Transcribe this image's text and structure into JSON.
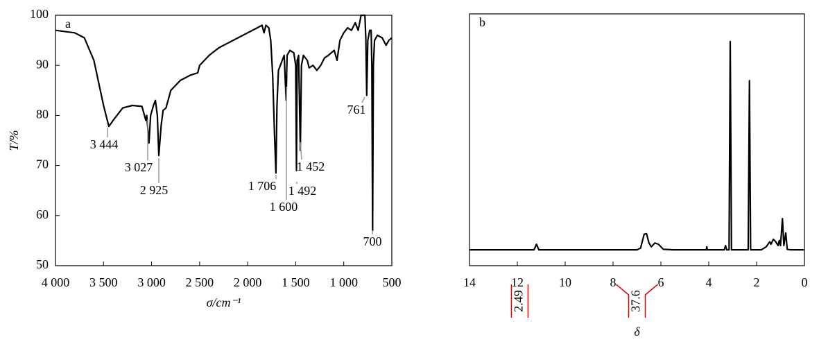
{
  "chart_data": [
    {
      "type": "line",
      "label": "a",
      "title_y": "T/%",
      "title_x": "σ/cm⁻¹",
      "xlim": [
        4000,
        500
      ],
      "ylim": [
        50,
        100
      ],
      "xticks": [
        {
          "value": 4000,
          "label": "4 000"
        },
        {
          "value": 3500,
          "label": "3 500"
        },
        {
          "value": 3000,
          "label": "3 000"
        },
        {
          "value": 2500,
          "label": "2 500"
        },
        {
          "value": 2000,
          "label": "2 000"
        },
        {
          "value": 1500,
          "label": "1 500"
        },
        {
          "value": 1000,
          "label": "1 000"
        },
        500
      ],
      "yticks": [
        50,
        60,
        70,
        80,
        90,
        100
      ],
      "color": "#000000",
      "x": [
        4000,
        3800,
        3700,
        3600,
        3500,
        3444,
        3400,
        3300,
        3200,
        3100,
        3060,
        3050,
        3027,
        3010,
        2980,
        2960,
        2940,
        2925,
        2900,
        2880,
        2850,
        2800,
        2700,
        2600,
        2520,
        2500,
        2400,
        2300,
        2200,
        2100,
        2000,
        1900,
        1850,
        1830,
        1810,
        1780,
        1760,
        1740,
        1720,
        1706,
        1695,
        1680,
        1660,
        1640,
        1620,
        1600,
        1590,
        1560,
        1520,
        1500,
        1492,
        1485,
        1470,
        1452,
        1440,
        1420,
        1380,
        1360,
        1320,
        1280,
        1240,
        1200,
        1160,
        1100,
        1070,
        1040,
        1000,
        960,
        920,
        880,
        850,
        820,
        780,
        770,
        761,
        750,
        730,
        715,
        708,
        700,
        692,
        680,
        650,
        600,
        560,
        530,
        500
      ],
      "values": [
        97,
        96.5,
        95.5,
        91,
        82,
        77.8,
        79,
        81.5,
        82,
        81.8,
        79,
        80,
        74.5,
        80,
        82,
        83,
        80,
        72,
        78,
        81,
        81.5,
        85,
        87,
        88,
        88.5,
        90,
        92,
        93.5,
        94.5,
        95.5,
        96.5,
        97.5,
        98,
        96.5,
        98,
        97.5,
        95,
        88,
        76,
        68.5,
        82,
        89,
        90,
        91,
        92,
        83,
        92,
        93,
        92.5,
        90,
        69,
        91,
        92,
        73,
        90,
        92,
        91,
        89.5,
        90,
        89,
        90,
        91.5,
        92,
        93,
        91,
        95,
        96.5,
        97.5,
        97,
        98.5,
        97,
        100,
        100,
        95,
        84,
        95,
        97,
        97,
        90,
        57,
        90,
        95,
        96,
        95.5,
        94,
        95,
        95.5
      ],
      "annotations": [
        "3 444",
        "3 027",
        "2 925",
        "1 706",
        "1 600",
        "1 492",
        "1 452",
        "761",
        "700"
      ]
    },
    {
      "type": "line",
      "label": "b",
      "title_x": "δ",
      "xlim": [
        14,
        0
      ],
      "ylim": [
        0,
        100
      ],
      "xticks": [
        14,
        12,
        10,
        8,
        6,
        4,
        2,
        0
      ],
      "color": "#000000",
      "x": [
        14,
        11.3,
        11.2,
        11.1,
        7.0,
        6.85,
        6.7,
        6.6,
        6.5,
        6.4,
        6.25,
        6.1,
        5.9,
        5.5,
        4.1,
        4.08,
        4.06,
        3.35,
        3.3,
        3.25,
        3.15,
        3.1,
        3.05,
        2.35,
        2.3,
        2.25,
        1.8,
        1.6,
        1.45,
        1.4,
        1.3,
        1.2,
        1.1,
        1.05,
        1.0,
        0.92,
        0.86,
        0.78,
        0.72,
        0.6,
        0
      ],
      "values": [
        6.3,
        6.3,
        8.5,
        6.3,
        6.3,
        7,
        12.5,
        12.7,
        9,
        7.5,
        9,
        8.5,
        6.5,
        6.3,
        6.3,
        7.5,
        6.3,
        6.3,
        8,
        6.3,
        6.3,
        89,
        6.3,
        6.3,
        73.5,
        6.3,
        6.3,
        7.5,
        9.5,
        8.5,
        10.5,
        9.5,
        8,
        10,
        8,
        18.7,
        8,
        13,
        6.5,
        6.3,
        6.3
      ],
      "integrals": [
        "2.49",
        "37.6"
      ]
    }
  ]
}
